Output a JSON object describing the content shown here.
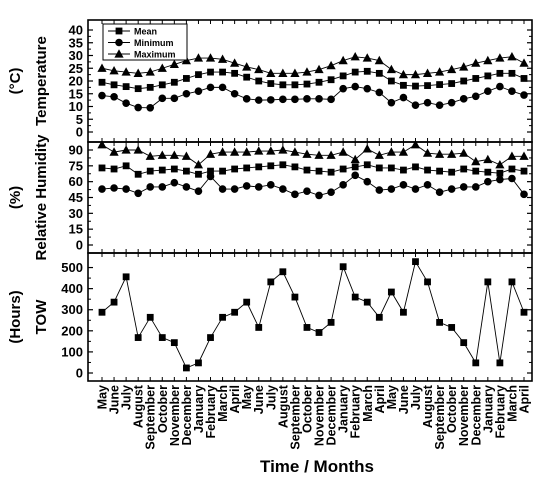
{
  "chart_data": {
    "type": "line",
    "x_label": "Time / Months",
    "months": [
      "May",
      "June",
      "July",
      "August",
      "September",
      "October",
      "November",
      "December",
      "January",
      "February",
      "March",
      "April",
      "May",
      "June",
      "July",
      "August",
      "September",
      "October",
      "November",
      "December",
      "January",
      "February",
      "March",
      "April",
      "May",
      "June",
      "July",
      "August",
      "September",
      "October",
      "November",
      "December",
      "January",
      "February",
      "March",
      "April"
    ],
    "panels": [
      {
        "id": "temperature",
        "ylabel_lines": [
          "Temperature",
          "(°C)"
        ],
        "ylim": [
          0,
          40
        ],
        "yticks": [
          0,
          5,
          10,
          15,
          20,
          25,
          30,
          35,
          40
        ],
        "legend": "top-left",
        "series": [
          {
            "name": "Mean",
            "marker": "square",
            "values": [
              19.5,
              18.5,
              17.8,
              17,
              17.5,
              18.5,
              19.5,
              21,
              22.5,
              23.5,
              23.5,
              23,
              21.5,
              20,
              19,
              18.5,
              18.5,
              18.8,
              19.5,
              20.5,
              22,
              23.5,
              23.8,
              23,
              20,
              18.3,
              18,
              18.2,
              18.6,
              19,
              20,
              21,
              22,
              23,
              23,
              21
            ]
          },
          {
            "name": "Minimum",
            "marker": "circle",
            "values": [
              14.3,
              13.8,
              11.3,
              9.6,
              9.5,
              13.2,
              13.2,
              15,
              16,
              17.5,
              17.5,
              15,
              13,
              12.5,
              12.6,
              12.8,
              12.8,
              13,
              13,
              12.8,
              17,
              17.8,
              17,
              15.5,
              11.5,
              13.5,
              10.5,
              11.5,
              10.5,
              11.5,
              13,
              14,
              16,
              17.8,
              16,
              14.5
            ]
          },
          {
            "name": "Maximum",
            "marker": "triangle",
            "values": [
              25,
              24,
              23.5,
              23,
              23.5,
              25,
              26.5,
              28,
              29,
              29,
              28.5,
              27,
              25.5,
              24.5,
              23,
              23,
              23,
              23.5,
              24.5,
              26,
              28,
              29.5,
              29,
              28,
              24.5,
              22.5,
              22.5,
              23,
              23.5,
              24.5,
              25.5,
              27,
              28,
              29,
              29.5,
              27
            ]
          }
        ]
      },
      {
        "id": "humidity",
        "ylabel_lines": [
          "Relative Humidity",
          "(%)"
        ],
        "ylim": [
          0,
          90
        ],
        "yticks": [
          0,
          15,
          30,
          45,
          60,
          75,
          90
        ],
        "series": [
          {
            "name": "Mean",
            "marker": "square",
            "values": [
              73,
              72,
              75,
              67,
              70,
              71,
              72,
              70,
              67,
              70,
              70,
              72,
              73,
              74,
              75,
              76,
              74,
              71,
              70,
              69,
              72,
              74,
              76,
              73,
              73,
              71,
              74,
              71,
              70,
              69,
              72,
              70,
              69,
              68,
              72,
              70
            ]
          },
          {
            "name": "Minimum",
            "marker": "circle",
            "values": [
              53,
              54,
              53,
              49,
              55,
              55,
              59,
              55,
              51,
              65,
              53,
              53,
              56,
              55,
              57,
              53,
              48,
              51,
              47,
              50,
              57,
              66,
              60,
              52,
              53,
              57,
              53,
              57,
              50,
              53,
              55,
              55,
              60,
              62,
              63,
              48
            ]
          },
          {
            "name": "Maximum",
            "marker": "triangle",
            "values": [
              95,
              88,
              90,
              90,
              84,
              85,
              85,
              84,
              76,
              86,
              88,
              88,
              88,
              89,
              89,
              90,
              88,
              86,
              85,
              85,
              88,
              81,
              91,
              85,
              88,
              88,
              95,
              87,
              86,
              86,
              87,
              79,
              81,
              76,
              84,
              84
            ]
          }
        ]
      },
      {
        "id": "tow",
        "ylabel_lines": [
          "TOW",
          "(Hours)"
        ],
        "ylim": [
          0,
          550
        ],
        "yticks": [
          0,
          100,
          200,
          300,
          400,
          500
        ],
        "series": [
          {
            "name": "TOW",
            "marker": "square",
            "values": [
              288,
              336,
              456,
              168,
              264,
              168,
              144,
              24,
              48,
              168,
              264,
              288,
              336,
              216,
              432,
              480,
              360,
              216,
              192,
              240,
              504,
              360,
              336,
              264,
              384,
              288,
              528,
              432,
              240,
              216,
              144,
              48,
              432,
              48,
              432,
              288
            ]
          }
        ]
      }
    ]
  }
}
